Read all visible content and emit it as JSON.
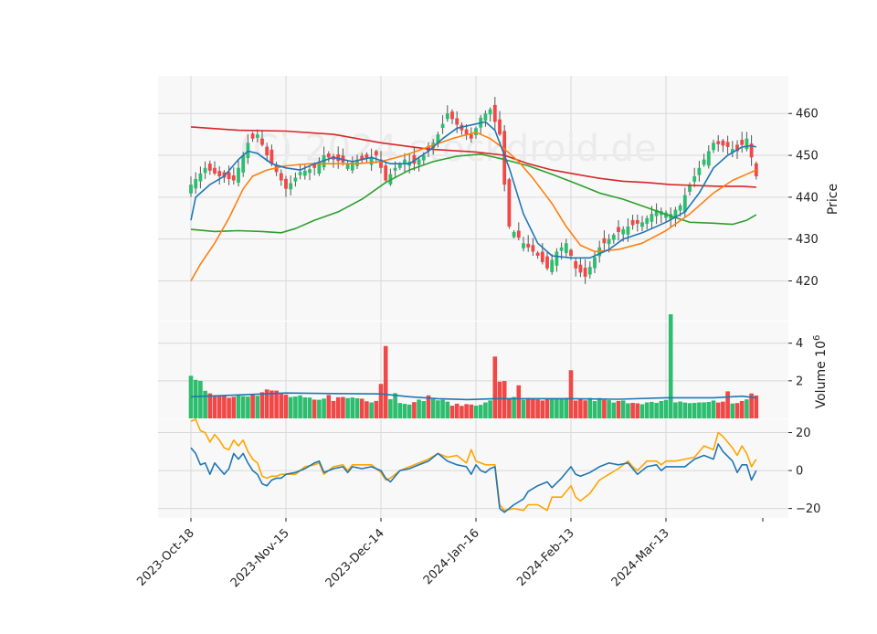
{
  "chart_data": {
    "type": "candlestick",
    "watermark": "(C) 2024 stockdroid.de",
    "colors": {
      "up": "#2dbd6e",
      "down": "#f04747",
      "ma_short": "#1f77b4",
      "ma_mid": "#ff7f0e",
      "ma_long1": "#2ca02c",
      "ma_long2": "#d62728",
      "volume_ma": "#1f77b4",
      "osc_blue": "#1f77b4",
      "osc_orange": "#ffa500",
      "panel_bg": "#f8f8f8",
      "grid": "#d8d8d8"
    },
    "x_tick_labels": [
      "2023-Oct-18",
      "2023-Nov-15",
      "2023-Dec-14",
      "2024-Jan-16",
      "2024-Feb-13",
      "2024-Mar-13"
    ],
    "x_tick_indices": [
      0,
      20,
      40,
      60,
      80,
      100
    ],
    "n_sessions": 120,
    "price_panel": {
      "ylabel": "Price",
      "ylim": [
        410.5,
        469
      ],
      "yticks": [
        420,
        430,
        440,
        450,
        460
      ]
    },
    "volume_panel": {
      "ylabel": "Volume",
      "yscale_label": "10",
      "yscale_exponent": "6",
      "ylim": [
        0,
        5.15
      ],
      "yticks": [
        2,
        4
      ]
    },
    "osc_panel": {
      "ylim": [
        -25,
        27
      ],
      "yticks": [
        20,
        0,
        -20
      ]
    },
    "price_anchors": [
      [
        0,
        443
      ],
      [
        3,
        447
      ],
      [
        6,
        445
      ],
      [
        9,
        444
      ],
      [
        12,
        453
      ],
      [
        14,
        455
      ],
      [
        16,
        450
      ],
      [
        18,
        446
      ],
      [
        20,
        442
      ],
      [
        23,
        446
      ],
      [
        26,
        447
      ],
      [
        28,
        450
      ],
      [
        30,
        449
      ],
      [
        33,
        448
      ],
      [
        36,
        449
      ],
      [
        39,
        450
      ],
      [
        41,
        444
      ],
      [
        43,
        447
      ],
      [
        45,
        449
      ],
      [
        47,
        448
      ],
      [
        50,
        451
      ],
      [
        52,
        455
      ],
      [
        54,
        460
      ],
      [
        57,
        456
      ],
      [
        59,
        454
      ],
      [
        61,
        459
      ],
      [
        63,
        461
      ],
      [
        65,
        455
      ],
      [
        66,
        443
      ],
      [
        67,
        433
      ],
      [
        70,
        429
      ],
      [
        73,
        426
      ],
      [
        75,
        423
      ],
      [
        77,
        427
      ],
      [
        79,
        429
      ],
      [
        81,
        423
      ],
      [
        83,
        421
      ],
      [
        86,
        428
      ],
      [
        89,
        431
      ],
      [
        92,
        433
      ],
      [
        95,
        434
      ],
      [
        98,
        437
      ],
      [
        101,
        436
      ],
      [
        103,
        438
      ],
      [
        105,
        443
      ],
      [
        107,
        447
      ],
      [
        110,
        453
      ],
      [
        113,
        452
      ],
      [
        115,
        451
      ],
      [
        117,
        454
      ],
      [
        119,
        445
      ]
    ],
    "ma_short_points": [
      [
        0,
        434.5
      ],
      [
        1,
        440
      ],
      [
        4,
        443
      ],
      [
        7,
        445
      ],
      [
        10,
        449
      ],
      [
        12,
        451
      ],
      [
        14,
        450.5
      ],
      [
        17,
        448
      ],
      [
        20,
        447
      ],
      [
        23,
        446.5
      ],
      [
        26,
        448
      ],
      [
        30,
        449.5
      ],
      [
        34,
        448.5
      ],
      [
        38,
        449.5
      ],
      [
        42,
        448
      ],
      [
        46,
        448
      ],
      [
        50,
        451
      ],
      [
        53,
        454
      ],
      [
        56,
        456.5
      ],
      [
        60,
        457.5
      ],
      [
        62,
        458
      ],
      [
        64,
        456
      ],
      [
        67,
        447
      ],
      [
        70,
        436
      ],
      [
        73,
        429
      ],
      [
        76,
        426
      ],
      [
        80,
        425.5
      ],
      [
        84,
        425.5
      ],
      [
        88,
        427.5
      ],
      [
        91,
        430
      ],
      [
        95,
        431.5
      ],
      [
        100,
        434
      ],
      [
        104,
        436.5
      ],
      [
        107,
        441
      ],
      [
        110,
        447
      ],
      [
        113,
        450
      ],
      [
        116,
        452
      ],
      [
        118,
        452.3
      ],
      [
        119,
        452
      ]
    ],
    "ma_mid_points": [
      [
        0,
        420
      ],
      [
        2,
        424
      ],
      [
        5,
        429
      ],
      [
        8,
        435
      ],
      [
        11,
        442
      ],
      [
        13,
        445
      ],
      [
        16,
        446.5
      ],
      [
        20,
        447.5
      ],
      [
        25,
        448
      ],
      [
        30,
        448
      ],
      [
        35,
        448
      ],
      [
        40,
        448.5
      ],
      [
        45,
        450
      ],
      [
        50,
        452
      ],
      [
        55,
        454
      ],
      [
        60,
        455.5
      ],
      [
        63,
        454
      ],
      [
        66,
        451.5
      ],
      [
        69,
        448.5
      ],
      [
        72,
        444.5
      ],
      [
        76,
        438.5
      ],
      [
        79,
        433
      ],
      [
        82,
        428.5
      ],
      [
        85,
        427
      ],
      [
        90,
        427.5
      ],
      [
        95,
        429
      ],
      [
        100,
        432
      ],
      [
        105,
        436
      ],
      [
        110,
        441
      ],
      [
        114,
        444
      ],
      [
        117,
        445.5
      ],
      [
        119,
        446.5
      ]
    ],
    "ma_long1_points": [
      [
        0,
        432.3
      ],
      [
        5,
        431.8
      ],
      [
        10,
        432
      ],
      [
        15,
        431.8
      ],
      [
        19,
        431.5
      ],
      [
        22,
        432.5
      ],
      [
        26,
        434.5
      ],
      [
        31,
        436.5
      ],
      [
        36,
        439.5
      ],
      [
        41,
        443.5
      ],
      [
        46,
        446.5
      ],
      [
        51,
        448.5
      ],
      [
        56,
        449.8
      ],
      [
        61,
        450.3
      ],
      [
        66,
        449
      ],
      [
        71,
        447.5
      ],
      [
        76,
        445.5
      ],
      [
        81,
        443.3
      ],
      [
        86,
        441
      ],
      [
        91,
        439.5
      ],
      [
        96,
        437.5
      ],
      [
        101,
        435.5
      ],
      [
        105,
        434
      ],
      [
        110,
        433.8
      ],
      [
        114,
        433.5
      ],
      [
        117,
        434.5
      ],
      [
        119,
        435.8
      ]
    ],
    "ma_long2_points": [
      [
        0,
        456.8
      ],
      [
        10,
        456
      ],
      [
        20,
        455.8
      ],
      [
        30,
        455
      ],
      [
        40,
        453
      ],
      [
        50,
        451.5
      ],
      [
        60,
        450.8
      ],
      [
        66,
        450
      ],
      [
        71,
        448
      ],
      [
        76,
        446.5
      ],
      [
        81,
        445.5
      ],
      [
        86,
        444.5
      ],
      [
        91,
        443.8
      ],
      [
        96,
        443.5
      ],
      [
        101,
        443
      ],
      [
        106,
        442.8
      ],
      [
        111,
        442.6
      ],
      [
        116,
        442.6
      ],
      [
        119,
        442.4
      ]
    ],
    "volume_anchors": [
      [
        0,
        2.05
      ],
      [
        3,
        1.55
      ],
      [
        6,
        1.2
      ],
      [
        9,
        1.2
      ],
      [
        12,
        1.3
      ],
      [
        15,
        1.35
      ],
      [
        18,
        1.4
      ],
      [
        20,
        1.2
      ],
      [
        23,
        1.1
      ],
      [
        26,
        0.95
      ],
      [
        29,
        1.0
      ],
      [
        32,
        1.1
      ],
      [
        35,
        1.1
      ],
      [
        38,
        0.95
      ],
      [
        41,
        1.2
      ],
      [
        44,
        0.9
      ],
      [
        47,
        0.8
      ],
      [
        50,
        1.15
      ],
      [
        53,
        0.9
      ],
      [
        56,
        0.7
      ],
      [
        59,
        0.75
      ],
      [
        62,
        0.8
      ],
      [
        65,
        1.1
      ],
      [
        68,
        1.15
      ],
      [
        71,
        1.0
      ],
      [
        74,
        0.95
      ],
      [
        77,
        0.95
      ],
      [
        80,
        1.0
      ],
      [
        83,
        1.0
      ],
      [
        86,
        1.0
      ],
      [
        89,
        0.85
      ],
      [
        92,
        0.9
      ],
      [
        95,
        0.85
      ],
      [
        98,
        0.8
      ],
      [
        101,
        0.95
      ],
      [
        104,
        0.85
      ],
      [
        107,
        0.8
      ],
      [
        110,
        0.95
      ],
      [
        113,
        0.8
      ],
      [
        116,
        0.9
      ],
      [
        119,
        1.2
      ]
    ],
    "volume_spikes": [
      [
        2,
        1.8
      ],
      [
        13,
        1.45
      ],
      [
        16,
        1.55
      ],
      [
        20,
        1.2
      ],
      [
        29,
        1.35
      ],
      [
        40,
        1.9
      ],
      [
        41,
        4.0
      ],
      [
        43,
        1.3
      ],
      [
        64,
        3.5
      ],
      [
        65,
        1.8
      ],
      [
        66,
        1.85
      ],
      [
        69,
        1.85
      ],
      [
        80,
        2.45
      ],
      [
        101,
        5.15
      ],
      [
        113,
        1.35
      ],
      [
        118,
        1.2
      ]
    ],
    "volume_ma_points": [
      [
        0,
        1.15
      ],
      [
        10,
        1.25
      ],
      [
        20,
        1.35
      ],
      [
        30,
        1.32
      ],
      [
        40,
        1.3
      ],
      [
        46,
        1.15
      ],
      [
        52,
        1.05
      ],
      [
        58,
        1.0
      ],
      [
        64,
        1.05
      ],
      [
        70,
        1.05
      ],
      [
        80,
        1.05
      ],
      [
        90,
        1.02
      ],
      [
        100,
        1.1
      ],
      [
        110,
        1.1
      ],
      [
        116,
        1.18
      ],
      [
        119,
        1.1
      ]
    ],
    "osc_blue_points": [
      [
        0,
        12
      ],
      [
        1,
        9
      ],
      [
        2,
        3
      ],
      [
        3,
        4
      ],
      [
        4,
        -2
      ],
      [
        5,
        4
      ],
      [
        6,
        1
      ],
      [
        7,
        -2
      ],
      [
        8,
        1
      ],
      [
        9,
        9
      ],
      [
        10,
        6
      ],
      [
        11,
        9
      ],
      [
        12,
        4
      ],
      [
        13,
        0
      ],
      [
        14,
        -2
      ],
      [
        15,
        -7
      ],
      [
        16,
        -8
      ],
      [
        17,
        -5
      ],
      [
        18,
        -4
      ],
      [
        19,
        -4
      ],
      [
        20,
        -2
      ],
      [
        22,
        -1
      ],
      [
        24,
        1
      ],
      [
        26,
        4
      ],
      [
        27,
        5
      ],
      [
        28,
        -1
      ],
      [
        30,
        1
      ],
      [
        32,
        2
      ],
      [
        33,
        -1
      ],
      [
        34,
        2
      ],
      [
        36,
        1
      ],
      [
        38,
        2
      ],
      [
        40,
        0
      ],
      [
        41,
        -4
      ],
      [
        42,
        -6
      ],
      [
        44,
        0
      ],
      [
        46,
        1
      ],
      [
        48,
        3
      ],
      [
        50,
        5
      ],
      [
        52,
        9
      ],
      [
        54,
        5
      ],
      [
        56,
        3
      ],
      [
        58,
        2
      ],
      [
        59,
        -2
      ],
      [
        60,
        3
      ],
      [
        61,
        0
      ],
      [
        62,
        -1
      ],
      [
        63,
        1
      ],
      [
        64,
        2
      ],
      [
        65,
        -20
      ],
      [
        66,
        -22
      ],
      [
        68,
        -18
      ],
      [
        70,
        -15
      ],
      [
        71,
        -11
      ],
      [
        73,
        -8
      ],
      [
        75,
        -6
      ],
      [
        76,
        -9
      ],
      [
        78,
        -4
      ],
      [
        80,
        2
      ],
      [
        81,
        -2
      ],
      [
        82,
        -3
      ],
      [
        84,
        -1
      ],
      [
        86,
        2
      ],
      [
        88,
        4
      ],
      [
        90,
        3
      ],
      [
        92,
        4
      ],
      [
        93,
        1
      ],
      [
        94,
        -2
      ],
      [
        96,
        2
      ],
      [
        98,
        3
      ],
      [
        99,
        0
      ],
      [
        100,
        2
      ],
      [
        102,
        2
      ],
      [
        104,
        2
      ],
      [
        106,
        6
      ],
      [
        108,
        8
      ],
      [
        110,
        6
      ],
      [
        111,
        14
      ],
      [
        112,
        10
      ],
      [
        114,
        5
      ],
      [
        115,
        -1
      ],
      [
        116,
        3
      ],
      [
        117,
        3
      ],
      [
        118,
        -5
      ],
      [
        119,
        0
      ]
    ],
    "osc_orange_points": [
      [
        0,
        26
      ],
      [
        1,
        27
      ],
      [
        2,
        21
      ],
      [
        3,
        20
      ],
      [
        4,
        15
      ],
      [
        5,
        19
      ],
      [
        6,
        16
      ],
      [
        7,
        12
      ],
      [
        8,
        11
      ],
      [
        9,
        16
      ],
      [
        10,
        13
      ],
      [
        11,
        16
      ],
      [
        12,
        10
      ],
      [
        13,
        6
      ],
      [
        14,
        4
      ],
      [
        15,
        -3
      ],
      [
        16,
        -4
      ],
      [
        17,
        -3
      ],
      [
        18,
        -3
      ],
      [
        19,
        -2
      ],
      [
        20,
        -2
      ],
      [
        22,
        -2
      ],
      [
        24,
        2
      ],
      [
        26,
        3
      ],
      [
        27,
        4
      ],
      [
        28,
        -2
      ],
      [
        30,
        2
      ],
      [
        32,
        3
      ],
      [
        33,
        0
      ],
      [
        34,
        3
      ],
      [
        36,
        3
      ],
      [
        38,
        3
      ],
      [
        40,
        -1
      ],
      [
        41,
        -5
      ],
      [
        42,
        -4
      ],
      [
        44,
        0
      ],
      [
        46,
        2
      ],
      [
        48,
        4
      ],
      [
        50,
        6
      ],
      [
        52,
        9
      ],
      [
        54,
        7
      ],
      [
        56,
        8
      ],
      [
        58,
        4
      ],
      [
        59,
        11
      ],
      [
        60,
        5
      ],
      [
        61,
        4
      ],
      [
        62,
        3
      ],
      [
        63,
        3
      ],
      [
        64,
        3
      ],
      [
        65,
        -18
      ],
      [
        66,
        -21
      ],
      [
        68,
        -20
      ],
      [
        70,
        -21
      ],
      [
        71,
        -18
      ],
      [
        73,
        -18
      ],
      [
        75,
        -21
      ],
      [
        76,
        -14
      ],
      [
        78,
        -14
      ],
      [
        80,
        -8
      ],
      [
        81,
        -14
      ],
      [
        82,
        -16
      ],
      [
        84,
        -12
      ],
      [
        86,
        -5
      ],
      [
        88,
        -2
      ],
      [
        90,
        1
      ],
      [
        92,
        5
      ],
      [
        93,
        2
      ],
      [
        94,
        0
      ],
      [
        96,
        5
      ],
      [
        98,
        5
      ],
      [
        99,
        3
      ],
      [
        100,
        5
      ],
      [
        102,
        5
      ],
      [
        104,
        6
      ],
      [
        106,
        7
      ],
      [
        108,
        13
      ],
      [
        110,
        11
      ],
      [
        111,
        20
      ],
      [
        112,
        18
      ],
      [
        114,
        12
      ],
      [
        115,
        8
      ],
      [
        116,
        13
      ],
      [
        117,
        9
      ],
      [
        118,
        2
      ],
      [
        119,
        6
      ]
    ]
  }
}
